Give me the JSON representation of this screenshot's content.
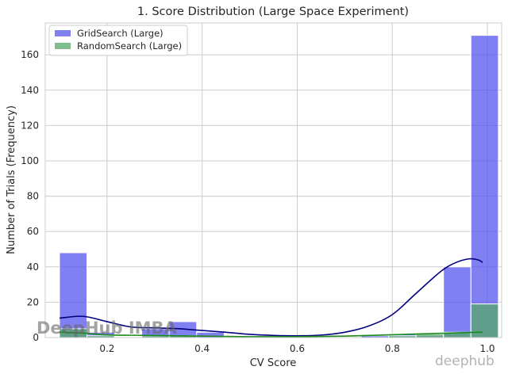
{
  "chart_data": {
    "type": "bar",
    "title": "1. Score Distribution (Large Space Experiment)",
    "xlabel": "CV Score",
    "ylabel": "Number of Trials (Frequency)",
    "xlim": [
      0.07,
      1.03
    ],
    "ylim": [
      0,
      178
    ],
    "xticks": [
      0.2,
      0.4,
      0.6,
      0.8,
      1.0
    ],
    "xtick_labels": [
      "0.2",
      "0.4",
      "0.6",
      "0.8",
      "1.0"
    ],
    "yticks": [
      0,
      20,
      40,
      60,
      80,
      100,
      120,
      140,
      160
    ],
    "ytick_labels": [
      "0",
      "20",
      "40",
      "60",
      "80",
      "100",
      "120",
      "140",
      "160"
    ],
    "grid": true,
    "legend_position": "top-left",
    "bin_edges": [
      0.1,
      0.1577,
      0.2154,
      0.2731,
      0.3308,
      0.3885,
      0.4462,
      0.5038,
      0.5615,
      0.6192,
      0.6769,
      0.7346,
      0.7923,
      0.85,
      0.9077,
      0.9654
    ],
    "bin_width": 0.0577,
    "series": [
      {
        "name": "GridSearch (Large)",
        "color": "#5555ee",
        "counts": [
          48,
          3,
          0,
          5,
          9,
          3,
          0,
          0,
          0,
          0,
          0,
          1,
          2,
          1,
          40,
          171
        ],
        "kde_x": [
          0.1,
          0.15,
          0.2,
          0.25,
          0.3,
          0.35,
          0.4,
          0.45,
          0.5,
          0.55,
          0.6,
          0.65,
          0.7,
          0.75,
          0.8,
          0.85,
          0.9,
          0.93,
          0.96,
          0.98,
          0.99
        ],
        "kde_y": [
          11,
          12,
          9,
          6,
          5.5,
          5,
          4,
          3,
          1.8,
          1.2,
          1.0,
          1.4,
          3,
          6.5,
          13,
          25,
          37,
          42,
          44.5,
          44,
          42.5
        ],
        "kde_color": "#000080"
      },
      {
        "name": "RandomSearch (Large)",
        "color": "#55a868",
        "counts": [
          5,
          1,
          0,
          1,
          1,
          0,
          0,
          0,
          0,
          0,
          0,
          0,
          1,
          2,
          3,
          19
        ],
        "kde_x": [
          0.1,
          0.15,
          0.2,
          0.3,
          0.4,
          0.5,
          0.6,
          0.7,
          0.8,
          0.9,
          0.96,
          0.99
        ],
        "kde_y": [
          3,
          2.5,
          1.5,
          1.2,
          0.8,
          0.5,
          0.5,
          0.8,
          1.6,
          2.4,
          2.9,
          3.0
        ],
        "kde_color": "#1a8a1a"
      }
    ]
  },
  "watermarks": {
    "left": "DeepHub IMBA",
    "right": "deephub"
  }
}
